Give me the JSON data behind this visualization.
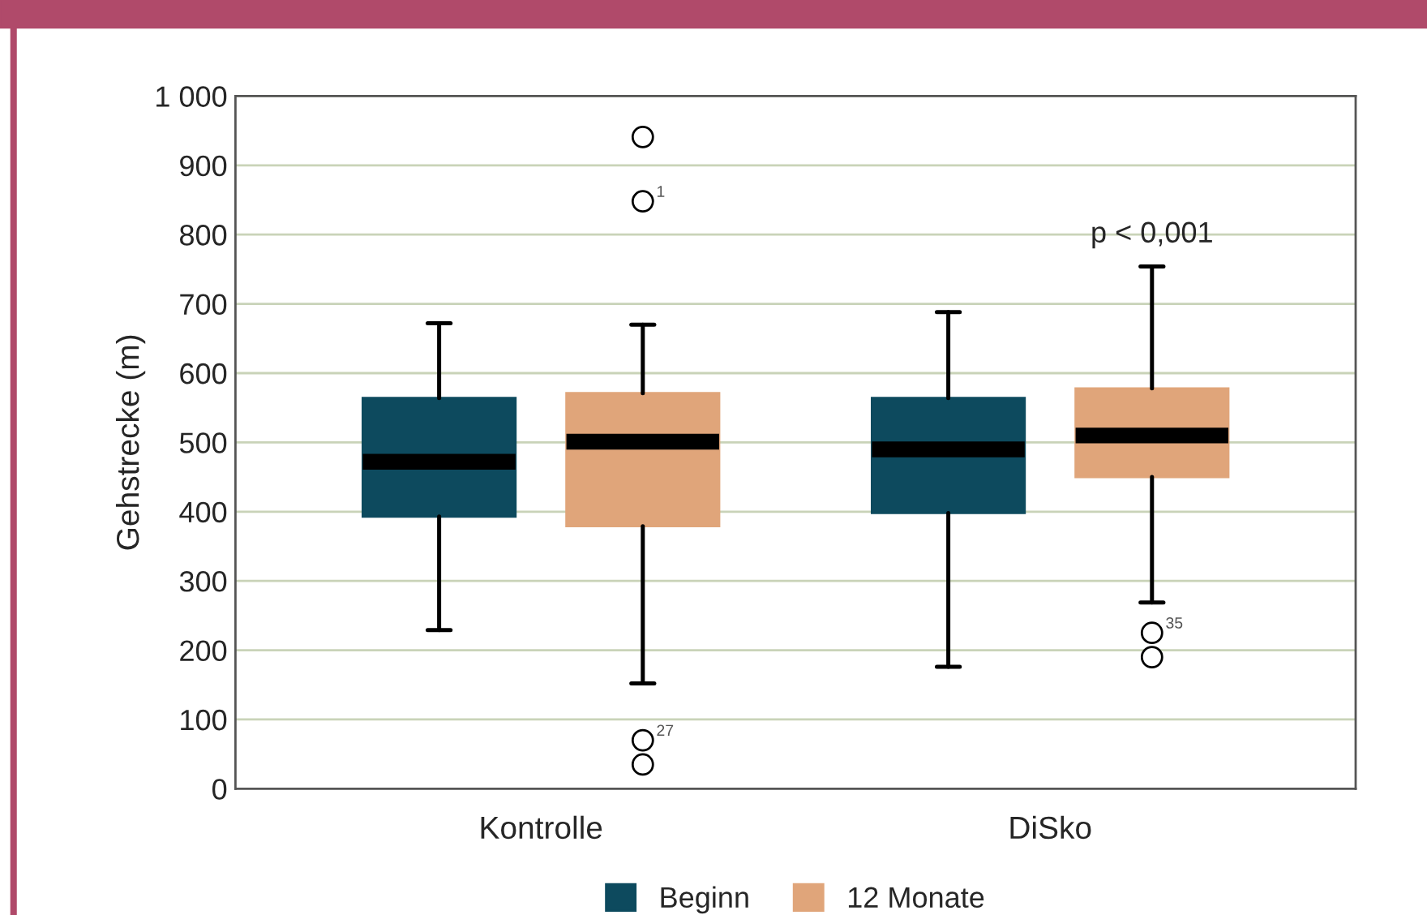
{
  "chart_data": {
    "type": "box",
    "ylabel": "Gehstrecke (m)",
    "categories": [
      "Kontrolle",
      "DiSko"
    ],
    "series": [
      {
        "name": "Beginn",
        "color": "#0d4a5e",
        "boxes": [
          {
            "low": 229,
            "q1": 393,
            "median": 472,
            "q3": 564,
            "high": 672
          },
          {
            "low": 176,
            "q1": 398,
            "median": 490,
            "q3": 564,
            "high": 688
          }
        ]
      },
      {
        "name": "12 Monate",
        "color": "#e0a57a",
        "boxes": [
          {
            "low": 152,
            "q1": 379,
            "median": 501,
            "q3": 571,
            "high": 670,
            "outliers": [
              941,
              848,
              70,
              35
            ]
          },
          {
            "low": 269,
            "q1": 450,
            "median": 510,
            "q3": 578,
            "high": 754,
            "outliers": [
              225,
              190
            ]
          }
        ]
      }
    ],
    "ylim": [
      0,
      1000
    ],
    "yticks": [
      0,
      100,
      200,
      300,
      400,
      500,
      600,
      700,
      800,
      900,
      {
        "value": 1000,
        "label": "1 000"
      }
    ],
    "grid": "y",
    "legend": "bottom",
    "annotations": [
      "1",
      "27",
      "35",
      "p < 0,001"
    ]
  }
}
